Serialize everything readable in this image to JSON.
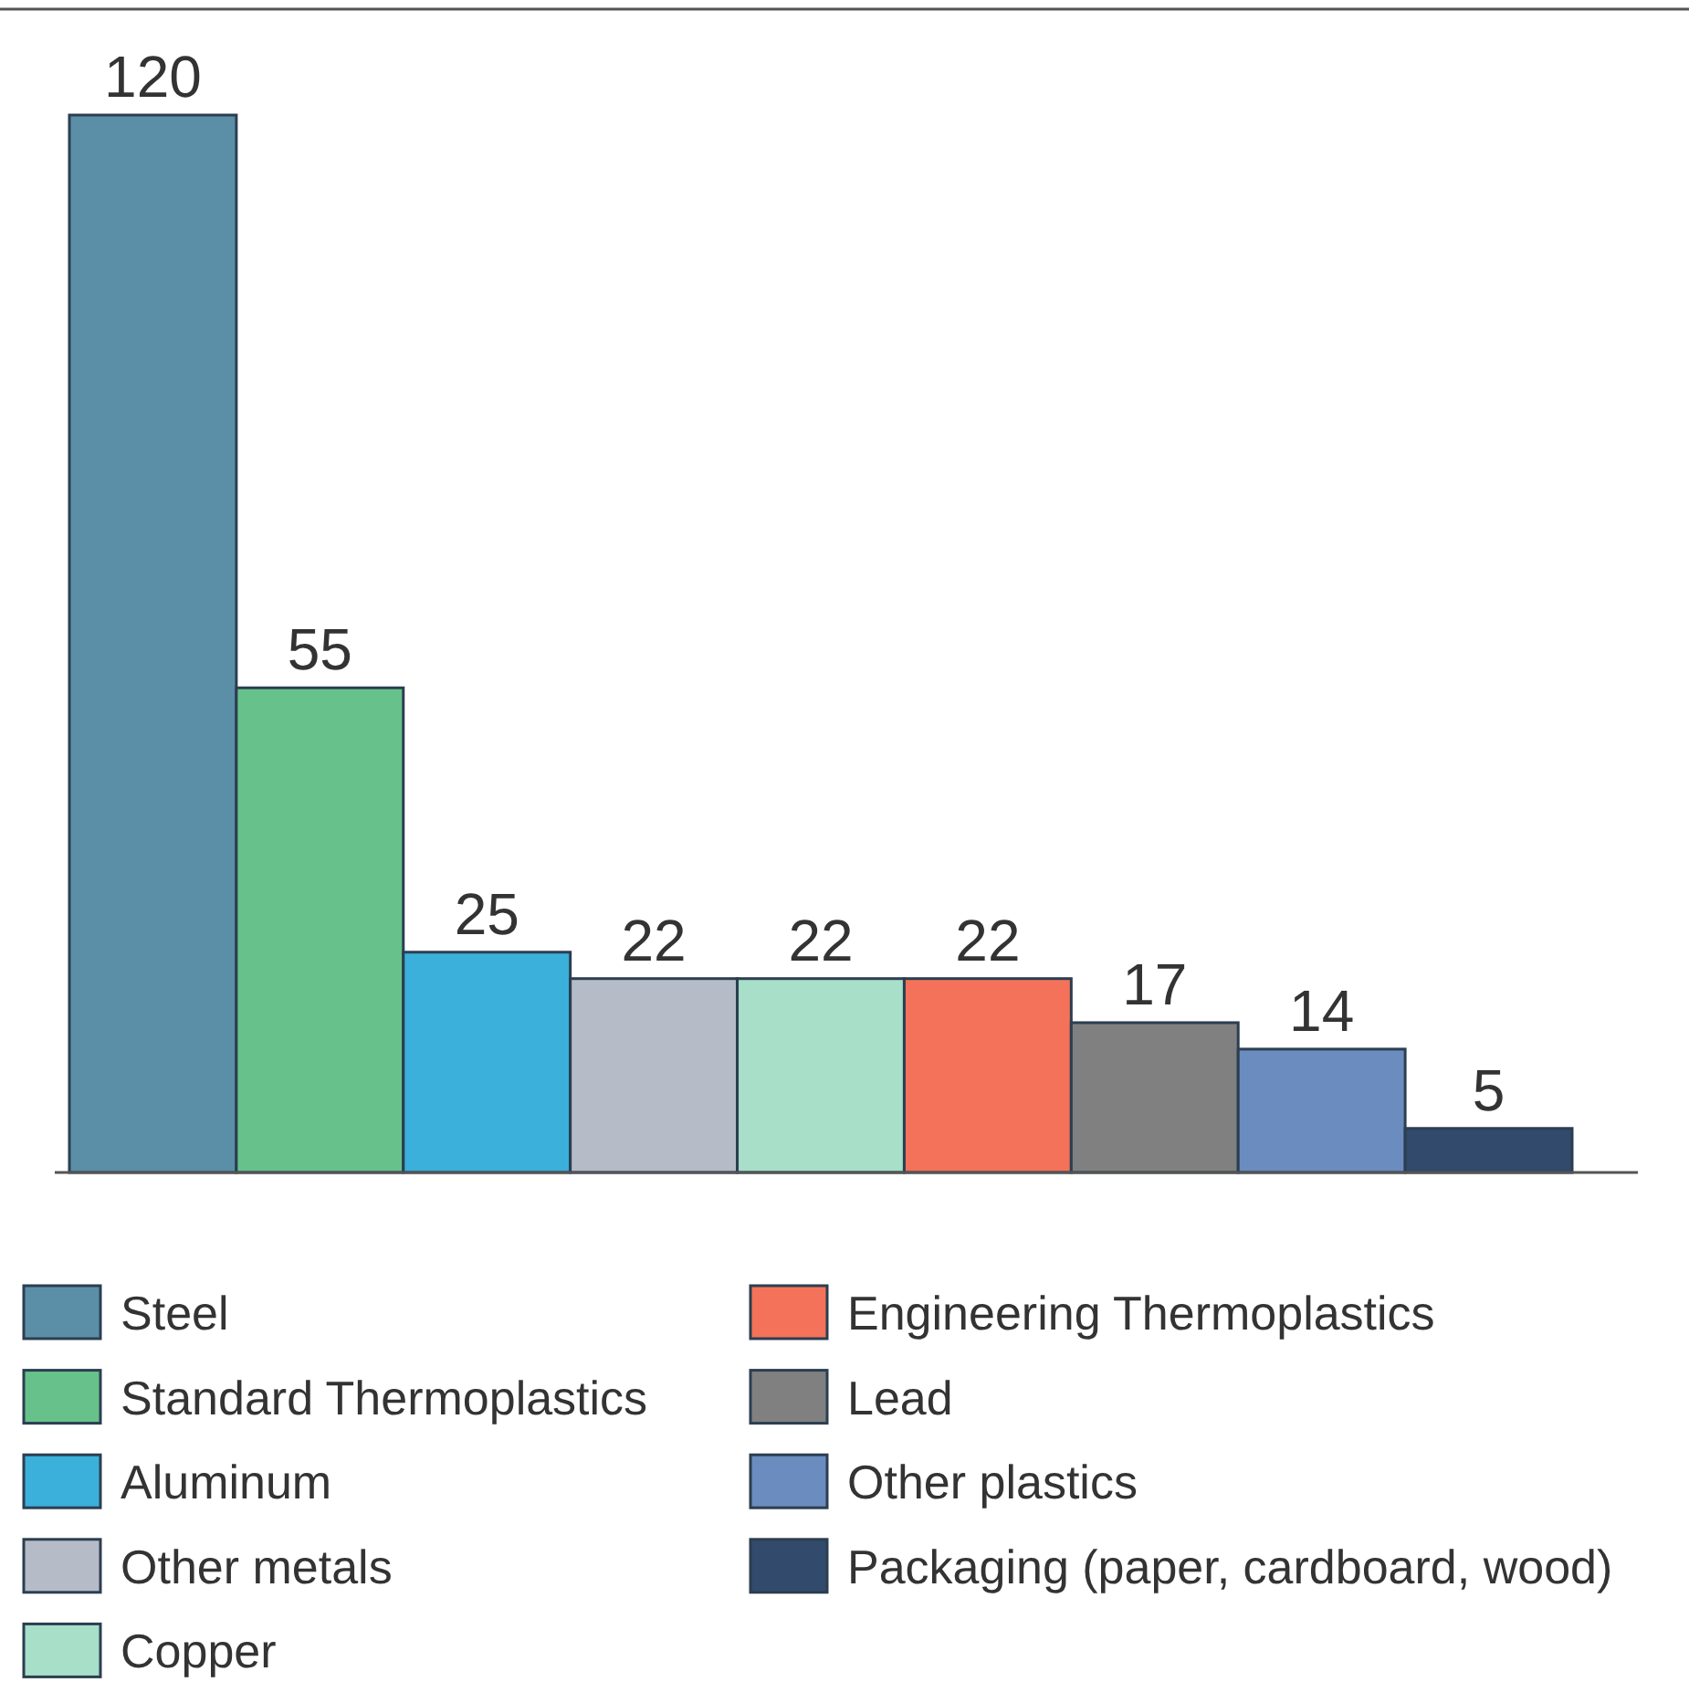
{
  "chart_data": {
    "type": "bar",
    "stacked": true,
    "categories": [
      null,
      null,
      null,
      null,
      null,
      null,
      null,
      null,
      null
    ],
    "series": [
      {
        "name": "Steel",
        "color": "#5b8fa8",
        "values": [
          120,
          null,
          null,
          null,
          null,
          null,
          null,
          null,
          null
        ]
      },
      {
        "name": "Standard Thermoplastics",
        "color": "#66c28a",
        "values": [
          null,
          55,
          null,
          null,
          null,
          null,
          null,
          null,
          null
        ]
      },
      {
        "name": "Aluminum",
        "color": "#3ab0db",
        "values": [
          null,
          null,
          25,
          null,
          null,
          null,
          null,
          null,
          null
        ]
      },
      {
        "name": "Other metals",
        "color": "#b5bcc7",
        "values": [
          null,
          null,
          null,
          22,
          null,
          null,
          null,
          null,
          null
        ]
      },
      {
        "name": "Copper",
        "color": "#a7dfc9",
        "values": [
          null,
          null,
          null,
          null,
          22,
          null,
          null,
          null,
          null
        ]
      },
      {
        "name": "Engineering Thermoplastics",
        "color": "#f47259",
        "values": [
          null,
          null,
          null,
          null,
          null,
          22,
          null,
          null,
          null
        ]
      },
      {
        "name": "Lead",
        "color": "#808080",
        "values": [
          null,
          null,
          null,
          null,
          null,
          null,
          17,
          null,
          null
        ]
      },
      {
        "name": "Other plastics",
        "color": "#6b8cbf",
        "values": [
          null,
          null,
          null,
          null,
          null,
          null,
          null,
          14,
          null
        ]
      },
      {
        "name": "Packaging (paper, cardboard, wood)",
        "color": "#324a6b",
        "values": [
          null,
          null,
          null,
          null,
          null,
          null,
          null,
          null,
          5
        ]
      }
    ],
    "data_labels": true,
    "legend": "bottom"
  }
}
